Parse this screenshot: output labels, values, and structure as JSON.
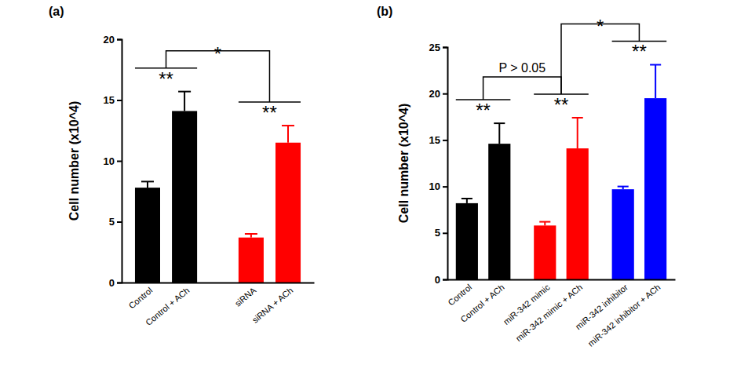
{
  "chart_data": [
    {
      "type": "bar",
      "title": "(a)",
      "ylabel": "Cell number (x10^4)",
      "categories": [
        "Control",
        "Control + ACh",
        "siRNA",
        "siRNA + ACh"
      ],
      "values": [
        7.8,
        14.1,
        3.7,
        11.5
      ],
      "errors": [
        0.5,
        1.6,
        0.3,
        1.4
      ],
      "colors": [
        "#000000",
        "#000000",
        "#ff0000",
        "#ff0000"
      ],
      "ylim": [
        0,
        20
      ],
      "yticks": [
        0,
        5,
        10,
        15,
        20
      ],
      "annotations": [
        {
          "text": "**",
          "bars": [
            0,
            1
          ]
        },
        {
          "text": "**",
          "bars": [
            2,
            3
          ]
        }
      ],
      "brackets": [
        {
          "text": "*",
          "between": [
            0,
            1
          ]
        }
      ]
    },
    {
      "type": "bar",
      "title": "(b)",
      "ylabel": "Cell number (x10^4)",
      "categories": [
        "Control",
        "Control + ACh",
        "miR-342 mimic",
        "miR-342 mimic + ACh",
        "miR-342 inhibitor",
        "miR-342 inhibitor + ACh"
      ],
      "values": [
        8.2,
        14.6,
        5.8,
        14.1,
        9.7,
        19.5
      ],
      "errors": [
        0.5,
        2.2,
        0.4,
        3.3,
        0.3,
        3.6
      ],
      "colors": [
        "#000000",
        "#000000",
        "#ff0000",
        "#ff0000",
        "#0000ff",
        "#0000ff"
      ],
      "ylim": [
        0,
        25
      ],
      "yticks": [
        0,
        5,
        10,
        15,
        20,
        25
      ],
      "annotations": [
        {
          "text": "**",
          "bars": [
            0,
            1
          ]
        },
        {
          "text": "**",
          "bars": [
            2,
            3
          ]
        },
        {
          "text": "**",
          "bars": [
            4,
            5
          ]
        }
      ],
      "brackets": [
        {
          "text": "P > 0.05",
          "between": [
            0,
            1
          ]
        },
        {
          "text": "*",
          "between": [
            1,
            2
          ]
        }
      ]
    }
  ]
}
